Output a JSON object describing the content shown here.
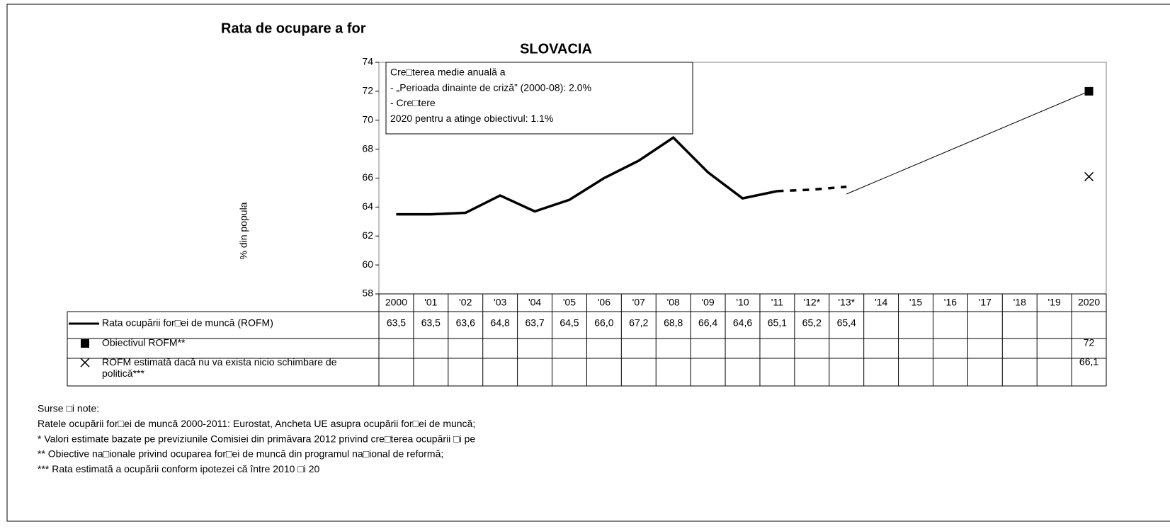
{
  "chart_data": {
    "type": "line",
    "title": "Rata de ocupare a for",
    "subtitle": "SLOVACIA",
    "y_label": "% din popula",
    "categories": [
      "2000",
      "'01",
      "'02",
      "'03",
      "'04",
      "'05",
      "'06",
      "'07",
      "'08",
      "'09",
      "'10",
      "'11",
      "'12*",
      "'13*",
      "'14",
      "'15",
      "'16",
      "'17",
      "'18",
      "'19",
      "2020"
    ],
    "ylim": [
      58,
      74
    ],
    "yticks": [
      58,
      60,
      62,
      64,
      66,
      68,
      70,
      72,
      74
    ],
    "annotation": [
      "Cre□terea medie anuală a",
      "- „Perioada dinainte de criză” (2000-08): 2.0%",
      "- Cre□tere",
      "2020 pentru a atinge obiectivul: 1.1%"
    ],
    "series": [
      {
        "name": "Rata ocupării for□ei de muncă (ROFM)",
        "color": "#000000",
        "marker": "line",
        "dashed_from": 11,
        "values": [
          63.5,
          63.5,
          63.6,
          64.8,
          63.7,
          64.5,
          66.0,
          67.2,
          68.8,
          66.4,
          64.6,
          65.1,
          65.2,
          65.4,
          null,
          null,
          null,
          null,
          null,
          null,
          null
        ],
        "value_labels": [
          "63,5",
          "63,5",
          "63,6",
          "64,8",
          "63,7",
          "64,5",
          "66,0",
          "67,2",
          "68,8",
          "66,4",
          "64,6",
          "65,1",
          "65,2",
          "65,4",
          null,
          null,
          null,
          null,
          null,
          null,
          null
        ]
      },
      {
        "name": "Obiectivul ROFM**",
        "color": "#000000",
        "marker": "square",
        "values": [
          null,
          null,
          null,
          null,
          null,
          null,
          null,
          null,
          null,
          null,
          null,
          null,
          null,
          null,
          null,
          null,
          null,
          null,
          null,
          null,
          72
        ],
        "value_labels": [
          null,
          null,
          null,
          null,
          null,
          null,
          null,
          null,
          null,
          null,
          null,
          null,
          null,
          null,
          null,
          null,
          null,
          null,
          null,
          null,
          "72"
        ]
      },
      {
        "name": "ROFM estimată dacă nu va exista nicio schimbare de politică***",
        "color": "#000000",
        "marker": "x",
        "values": [
          null,
          null,
          null,
          null,
          null,
          null,
          null,
          null,
          null,
          null,
          null,
          null,
          null,
          null,
          null,
          null,
          null,
          null,
          null,
          null,
          66.1
        ],
        "value_labels": [
          null,
          null,
          null,
          null,
          null,
          null,
          null,
          null,
          null,
          null,
          null,
          null,
          null,
          null,
          null,
          null,
          null,
          null,
          null,
          null,
          "66,1"
        ]
      }
    ],
    "trajectory_values": [
      null,
      null,
      null,
      null,
      null,
      null,
      null,
      null,
      null,
      null,
      null,
      null,
      null,
      64.9,
      null,
      null,
      null,
      null,
      null,
      null,
      72
    ],
    "notes": [
      "Surse □i note:",
      "Ratele ocupării for□ei de muncă 2000-2011: Eurostat, Ancheta UE asupra ocupării for□ei de muncă;",
      "* Valori estimate bazate pe previziunile Comisiei din primăvara 2012 privind cre□terea ocupării □i pe",
      "** Obiective na□ionale privind ocuparea for□ei de muncă din programul na□ional de reformă;",
      "*** Rata estimată a ocupării conform ipotezei că între 2010 □i 20"
    ]
  }
}
